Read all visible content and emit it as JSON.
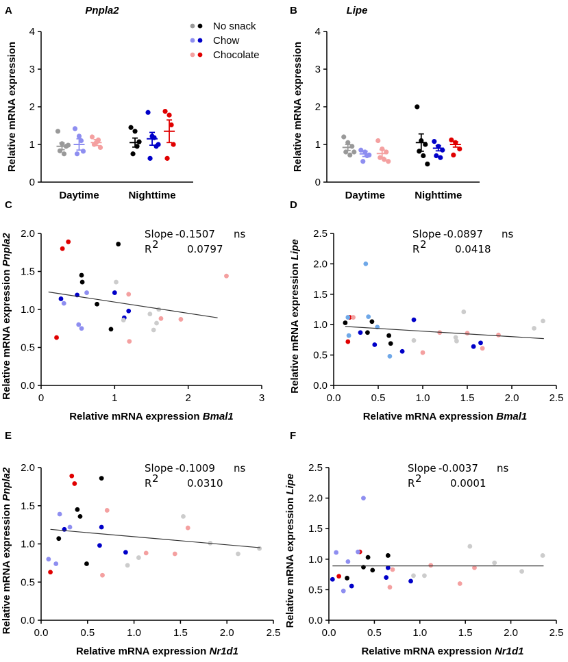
{
  "legend": {
    "items": [
      {
        "label": "No snack",
        "colors": [
          "#999999",
          "#000000"
        ]
      },
      {
        "label": "Chow",
        "colors": [
          "#8e8ef0",
          "#0000c8"
        ]
      },
      {
        "label": "Chocolate",
        "colors": [
          "#f4a0a0",
          "#e00000"
        ]
      }
    ]
  },
  "chart_data": [
    {
      "panel": "A",
      "title": "Pnpla2",
      "type": "dot-plot",
      "ylabel": "Relative mRNA expression",
      "ylim": [
        0,
        4
      ],
      "yticks": [
        0,
        1,
        2,
        3,
        4
      ],
      "groups": [
        "Daytime",
        "Nighttime"
      ],
      "series": [
        {
          "group": "Daytime",
          "name": "No snack",
          "color": "#999999",
          "mean": 0.95,
          "sem": 0.09,
          "values": [
            1.35,
            1.02,
            0.95,
            0.83,
            0.75,
            0.98
          ]
        },
        {
          "group": "Daytime",
          "name": "Chow",
          "color": "#8e8ef0",
          "mean": 1.0,
          "sem": 0.15,
          "values": [
            1.42,
            1.22,
            0.82,
            0.75,
            1.1
          ]
        },
        {
          "group": "Daytime",
          "name": "Chocolate",
          "color": "#f4a0a0",
          "mean": 1.05,
          "sem": 0.08,
          "values": [
            1.2,
            1.05,
            0.92,
            1.0,
            1.12
          ]
        },
        {
          "group": "Nighttime",
          "name": "No snack",
          "color": "#000000",
          "mean": 1.05,
          "sem": 0.12,
          "values": [
            1.45,
            1.35,
            1.07,
            0.75,
            0.95
          ]
        },
        {
          "group": "Nighttime",
          "name": "Chow",
          "color": "#0000c8",
          "mean": 1.15,
          "sem": 0.17,
          "values": [
            1.85,
            1.22,
            0.95,
            0.63,
            1.18,
            1.0
          ]
        },
        {
          "group": "Nighttime",
          "name": "Chocolate",
          "color": "#e00000",
          "mean": 1.35,
          "sem": 0.3,
          "values": [
            1.88,
            1.78,
            1.0,
            0.63,
            1.52
          ]
        }
      ]
    },
    {
      "panel": "B",
      "title": "Lipe",
      "type": "dot-plot",
      "ylabel": "Relative mRNA expression",
      "ylim": [
        0,
        4
      ],
      "yticks": [
        0,
        1,
        2,
        3,
        4
      ],
      "groups": [
        "Daytime",
        "Nighttime"
      ],
      "series": [
        {
          "group": "Daytime",
          "name": "No snack",
          "color": "#999999",
          "mean": 0.92,
          "sem": 0.08,
          "values": [
            1.2,
            1.05,
            0.95,
            0.8,
            0.72,
            0.8
          ]
        },
        {
          "group": "Daytime",
          "name": "Chow",
          "color": "#8e8ef0",
          "mean": 0.75,
          "sem": 0.07,
          "values": [
            0.85,
            0.8,
            0.72,
            0.55,
            0.7
          ]
        },
        {
          "group": "Daytime",
          "name": "Chocolate",
          "color": "#f4a0a0",
          "mean": 0.76,
          "sem": 0.1,
          "values": [
            1.1,
            0.88,
            0.8,
            0.65,
            0.6,
            0.55
          ]
        },
        {
          "group": "Nighttime",
          "name": "No snack",
          "color": "#000000",
          "mean": 1.05,
          "sem": 0.23,
          "values": [
            2.0,
            1.1,
            1.0,
            0.82,
            0.7,
            0.48
          ]
        },
        {
          "group": "Nighttime",
          "name": "Chow",
          "color": "#0000c8",
          "mean": 0.9,
          "sem": 0.07,
          "values": [
            1.08,
            0.95,
            0.85,
            0.7,
            0.65
          ]
        },
        {
          "group": "Nighttime",
          "name": "Chocolate",
          "color": "#e00000",
          "mean": 1.0,
          "sem": 0.07,
          "values": [
            1.12,
            1.05,
            0.88,
            0.72
          ]
        }
      ]
    },
    {
      "panel": "C",
      "type": "scatter",
      "xlabel": "Relative mRNA expression",
      "xlabel_gene": "Bmal1",
      "ylabel": "Relative mRNA expression",
      "ylabel_gene": "Pnpla2",
      "xlim": [
        0,
        3
      ],
      "xticks": [
        0,
        1,
        2,
        3
      ],
      "ylim": [
        0,
        2.0
      ],
      "yticks": [
        "0.0",
        "0.5",
        "1.0",
        "1.5",
        "2.0"
      ],
      "slope_label": "Slope",
      "slope_value": "-0.1507",
      "significance": "ns",
      "r2_label": "R",
      "r2_sup": "2",
      "r2_value": "0.0797",
      "regression": [
        [
          0.1,
          1.23
        ],
        [
          2.4,
          0.89
        ]
      ],
      "points": [
        [
          0.29,
          1.8,
          "#e00000"
        ],
        [
          0.37,
          1.89,
          "#e00000"
        ],
        [
          0.21,
          0.63,
          "#e00000"
        ],
        [
          0.55,
          1.45,
          "#000000"
        ],
        [
          0.56,
          1.36,
          "#000000"
        ],
        [
          0.76,
          1.07,
          "#000000"
        ],
        [
          0.95,
          0.74,
          "#000000"
        ],
        [
          1.05,
          1.86,
          "#000000"
        ],
        [
          0.27,
          1.14,
          "#0000c8"
        ],
        [
          0.49,
          1.19,
          "#0000c8"
        ],
        [
          1.0,
          1.22,
          "#0000c8"
        ],
        [
          1.13,
          0.89,
          "#0000c8"
        ],
        [
          1.19,
          0.98,
          "#0000c8"
        ],
        [
          0.31,
          1.08,
          "#8e8ef0"
        ],
        [
          0.51,
          0.8,
          "#8e8ef0"
        ],
        [
          0.55,
          0.75,
          "#8e8ef0"
        ],
        [
          0.62,
          1.22,
          "#8e8ef0"
        ],
        [
          1.02,
          1.36,
          "#cccccc"
        ],
        [
          1.12,
          0.86,
          "#cccccc"
        ],
        [
          1.48,
          0.94,
          "#cccccc"
        ],
        [
          1.53,
          0.73,
          "#cccccc"
        ],
        [
          1.57,
          0.82,
          "#cccccc"
        ],
        [
          1.6,
          1.0,
          "#cccccc"
        ],
        [
          1.19,
          1.2,
          "#f4a0a0"
        ],
        [
          1.2,
          0.58,
          "#f4a0a0"
        ],
        [
          1.63,
          0.88,
          "#f4a0a0"
        ],
        [
          1.9,
          0.87,
          "#f4a0a0"
        ],
        [
          2.52,
          1.44,
          "#f4a0a0"
        ]
      ]
    },
    {
      "panel": "D",
      "type": "scatter",
      "xlabel": "Relative mRNA expression",
      "xlabel_gene": "Bmal1",
      "ylabel": "Relative mRNA expression",
      "ylabel_gene": "Lipe",
      "xlim": [
        0,
        2.5
      ],
      "xticks": [
        "0.0",
        "0.5",
        "1.0",
        "1.5",
        "2.0",
        "2.5"
      ],
      "ylim": [
        0,
        2.5
      ],
      "yticks": [
        "0.0",
        "0.5",
        "1.0",
        "1.5",
        "2.0",
        "2.5"
      ],
      "slope_label": "Slope",
      "slope_value": "-0.0897",
      "significance": "ns",
      "r2_label": "R",
      "r2_sup": "2",
      "r2_value": "0.0418",
      "regression": [
        [
          0.13,
          0.97
        ],
        [
          2.36,
          0.77
        ]
      ],
      "points": [
        [
          0.13,
          1.03,
          "#000000"
        ],
        [
          0.38,
          0.87,
          "#000000"
        ],
        [
          0.43,
          1.05,
          "#000000"
        ],
        [
          0.62,
          0.82,
          "#000000"
        ],
        [
          0.64,
          0.69,
          "#000000"
        ],
        [
          0.18,
          1.12,
          "#e00000"
        ],
        [
          0.16,
          0.72,
          "#e00000"
        ],
        [
          0.3,
          0.87,
          "#0000c8"
        ],
        [
          0.46,
          0.67,
          "#0000c8"
        ],
        [
          0.77,
          0.56,
          "#0000c8"
        ],
        [
          0.9,
          1.08,
          "#0000c8"
        ],
        [
          1.57,
          0.64,
          "#0000c8"
        ],
        [
          1.65,
          0.7,
          "#0000c8"
        ],
        [
          0.36,
          2.0,
          "#6fa8e8"
        ],
        [
          0.16,
          1.12,
          "#6fa8e8"
        ],
        [
          0.49,
          0.96,
          "#6fa8e8"
        ],
        [
          0.63,
          0.48,
          "#6fa8e8"
        ],
        [
          0.17,
          0.82,
          "#6fa8e8"
        ],
        [
          0.39,
          1.13,
          "#6fa8e8"
        ],
        [
          0.22,
          1.12,
          "#f4a0a0"
        ],
        [
          1.0,
          0.54,
          "#f4a0a0"
        ],
        [
          1.19,
          0.87,
          "#f4a0a0"
        ],
        [
          1.5,
          0.86,
          "#f4a0a0"
        ],
        [
          1.67,
          0.61,
          "#f4a0a0"
        ],
        [
          1.85,
          0.83,
          "#f4a0a0"
        ],
        [
          0.9,
          0.74,
          "#cccccc"
        ],
        [
          1.37,
          0.79,
          "#cccccc"
        ],
        [
          1.38,
          0.73,
          "#cccccc"
        ],
        [
          1.46,
          1.21,
          "#cccccc"
        ],
        [
          2.25,
          0.94,
          "#cccccc"
        ],
        [
          2.35,
          1.06,
          "#cccccc"
        ]
      ]
    },
    {
      "panel": "E",
      "type": "scatter",
      "xlabel": "Relative mRNA expression",
      "xlabel_gene": "Nr1d1",
      "ylabel": "Relative mRNA expression",
      "ylabel_gene": "Pnpla2",
      "xlim": [
        0,
        2.5
      ],
      "xticks": [
        "0.0",
        "0.5",
        "1.0",
        "1.5",
        "2.0",
        "2.5"
      ],
      "ylim": [
        0,
        2.0
      ],
      "yticks": [
        "0.0",
        "0.5",
        "1.0",
        "1.5",
        "2.0"
      ],
      "slope_label": "Slope",
      "slope_value": "-0.1009",
      "significance": "ns",
      "r2_label": "R",
      "r2_sup": "2",
      "r2_value": "0.0310",
      "regression": [
        [
          0.1,
          1.19
        ],
        [
          2.36,
          0.95
        ]
      ],
      "points": [
        [
          0.33,
          1.89,
          "#e00000"
        ],
        [
          0.36,
          1.79,
          "#e00000"
        ],
        [
          0.1,
          0.63,
          "#e00000"
        ],
        [
          0.39,
          1.45,
          "#000000"
        ],
        [
          0.42,
          1.36,
          "#000000"
        ],
        [
          0.19,
          1.07,
          "#000000"
        ],
        [
          0.49,
          0.74,
          "#000000"
        ],
        [
          0.65,
          1.86,
          "#000000"
        ],
        [
          0.25,
          1.19,
          "#0000c8"
        ],
        [
          0.65,
          1.22,
          "#0000c8"
        ],
        [
          0.63,
          0.98,
          "#0000c8"
        ],
        [
          0.91,
          0.89,
          "#0000c8"
        ],
        [
          0.2,
          1.39,
          "#8e8ef0"
        ],
        [
          0.31,
          1.22,
          "#8e8ef0"
        ],
        [
          0.08,
          0.8,
          "#8e8ef0"
        ],
        [
          0.16,
          0.74,
          "#8e8ef0"
        ],
        [
          0.71,
          1.44,
          "#f4a0a0"
        ],
        [
          0.66,
          0.59,
          "#f4a0a0"
        ],
        [
          1.13,
          0.88,
          "#f4a0a0"
        ],
        [
          1.44,
          0.87,
          "#f4a0a0"
        ],
        [
          1.58,
          1.21,
          "#f4a0a0"
        ],
        [
          0.93,
          0.72,
          "#cccccc"
        ],
        [
          1.05,
          0.82,
          "#cccccc"
        ],
        [
          1.53,
          1.36,
          "#cccccc"
        ],
        [
          1.82,
          1.01,
          "#cccccc"
        ],
        [
          2.12,
          0.87,
          "#cccccc"
        ],
        [
          2.35,
          0.94,
          "#cccccc"
        ]
      ]
    },
    {
      "panel": "F",
      "type": "scatter",
      "xlabel": "Relative mRNA expression",
      "xlabel_gene": "Nr1d1",
      "ylabel": "Relative mRNA expression",
      "ylabel_gene": "Lipe",
      "xlim": [
        0,
        2.5
      ],
      "xticks": [
        "0.0",
        "0.5",
        "1.0",
        "1.5",
        "2.0",
        "2.5"
      ],
      "ylim": [
        0,
        2.5
      ],
      "yticks": [
        "0.0",
        "0.5",
        "1.0",
        "1.5",
        "2.0",
        "2.5"
      ],
      "slope_label": "Slope",
      "slope_value": "-0.0037",
      "significance": "ns",
      "r2_label": "R",
      "r2_sup": "2",
      "r2_value": "0.0001",
      "regression": [
        [
          0.04,
          0.89
        ],
        [
          2.36,
          0.89
        ]
      ],
      "points": [
        [
          0.11,
          0.72,
          "#e00000"
        ],
        [
          0.34,
          1.12,
          "#e00000"
        ],
        [
          0.43,
          1.03,
          "#000000"
        ],
        [
          0.65,
          1.06,
          "#000000"
        ],
        [
          0.38,
          0.87,
          "#000000"
        ],
        [
          0.2,
          0.69,
          "#000000"
        ],
        [
          0.48,
          0.82,
          "#000000"
        ],
        [
          0.04,
          0.67,
          "#0000c8"
        ],
        [
          0.25,
          0.56,
          "#0000c8"
        ],
        [
          0.65,
          0.86,
          "#0000c8"
        ],
        [
          0.63,
          0.7,
          "#0000c8"
        ],
        [
          0.9,
          0.64,
          "#0000c8"
        ],
        [
          0.38,
          2.0,
          "#8e8ef0"
        ],
        [
          0.08,
          1.11,
          "#8e8ef0"
        ],
        [
          0.32,
          1.12,
          "#8e8ef0"
        ],
        [
          0.16,
          0.48,
          "#8e8ef0"
        ],
        [
          0.21,
          0.96,
          "#8e8ef0"
        ],
        [
          0.67,
          0.54,
          "#f4a0a0"
        ],
        [
          0.7,
          0.83,
          "#f4a0a0"
        ],
        [
          1.12,
          0.9,
          "#f4a0a0"
        ],
        [
          1.44,
          0.6,
          "#f4a0a0"
        ],
        [
          1.6,
          0.86,
          "#f4a0a0"
        ],
        [
          0.93,
          0.73,
          "#cccccc"
        ],
        [
          1.05,
          0.73,
          "#cccccc"
        ],
        [
          1.55,
          1.21,
          "#cccccc"
        ],
        [
          1.82,
          0.94,
          "#cccccc"
        ],
        [
          2.12,
          0.8,
          "#cccccc"
        ],
        [
          2.35,
          1.06,
          "#cccccc"
        ]
      ]
    }
  ]
}
